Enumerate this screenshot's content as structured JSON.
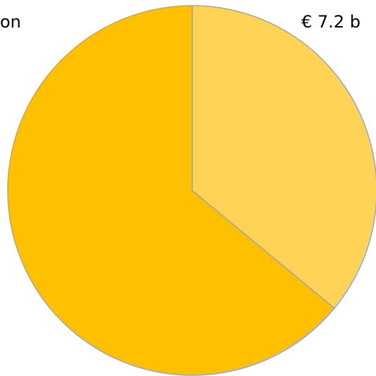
{
  "chart_data": {
    "type": "pie",
    "values": [
      7.2,
      12.8
    ],
    "value_labels": [
      "€ 7.2 b",
      "on"
    ],
    "colors": [
      "#FFD456",
      "#FFC000"
    ],
    "stroke": "#A5A5A5"
  }
}
